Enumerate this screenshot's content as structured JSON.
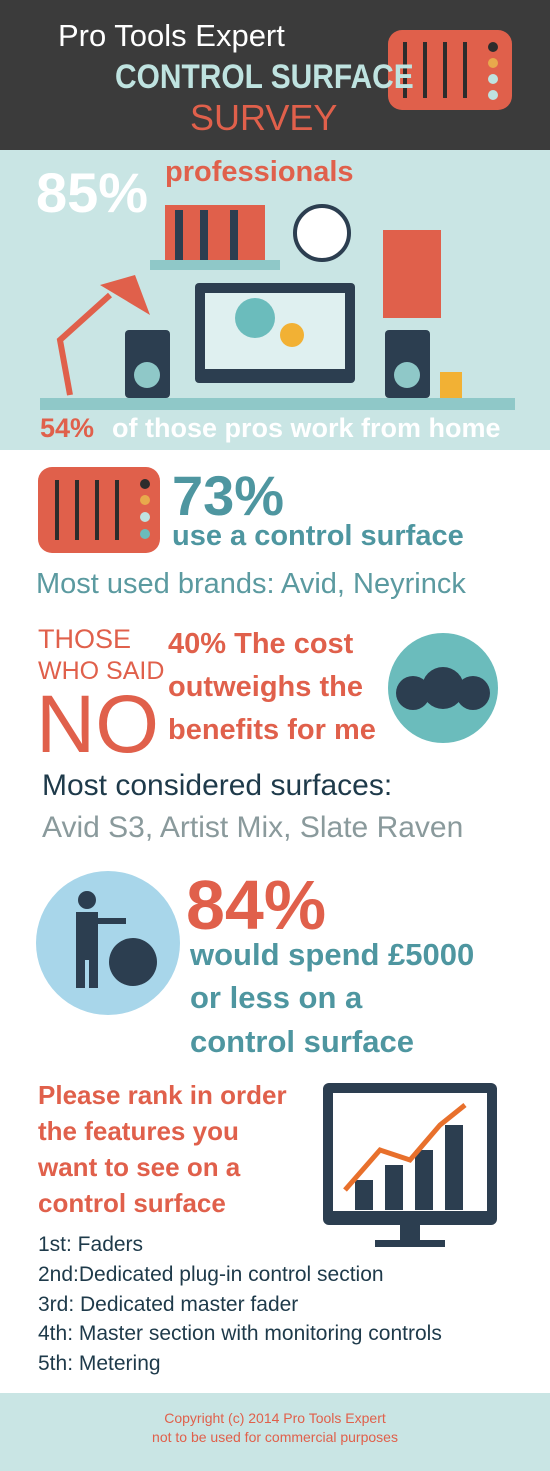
{
  "header": {
    "brand": "Pro Tools Expert",
    "title": "CONTROL SURFACE",
    "subtitle": "SURVEY"
  },
  "hero": {
    "stat": "85%",
    "label": "professionals",
    "home_stat": "54%",
    "home_label": "of those pros work from home"
  },
  "usage": {
    "stat": "73%",
    "label": "use a control surface",
    "brands": "Most used brands: Avid, Neyrinck"
  },
  "no": {
    "lead": [
      "THOSE",
      "WHO SAID"
    ],
    "answer": "NO",
    "reason": [
      "40% The cost",
      "outweighs the",
      "benefits for me"
    ]
  },
  "considered": {
    "title": "Most considered surfaces:",
    "list": "Avid S3, Artist Mix, Slate Raven"
  },
  "spend": {
    "stat": "84%",
    "lines": [
      "would spend £5000",
      "or less on a",
      "control surface"
    ]
  },
  "rank": {
    "question": [
      "Please rank in order",
      "the features you",
      "want to see on a",
      "control surface"
    ],
    "items": [
      "1st: Faders",
      "2nd:Dedicated plug-in control section",
      "3rd: Dedicated master fader",
      "4th: Master section with monitoring controls",
      "5th: Metering"
    ]
  },
  "footer": [
    "Copyright (c) 2014 Pro Tools Expert",
    "not to be used for commercial purposes"
  ]
}
